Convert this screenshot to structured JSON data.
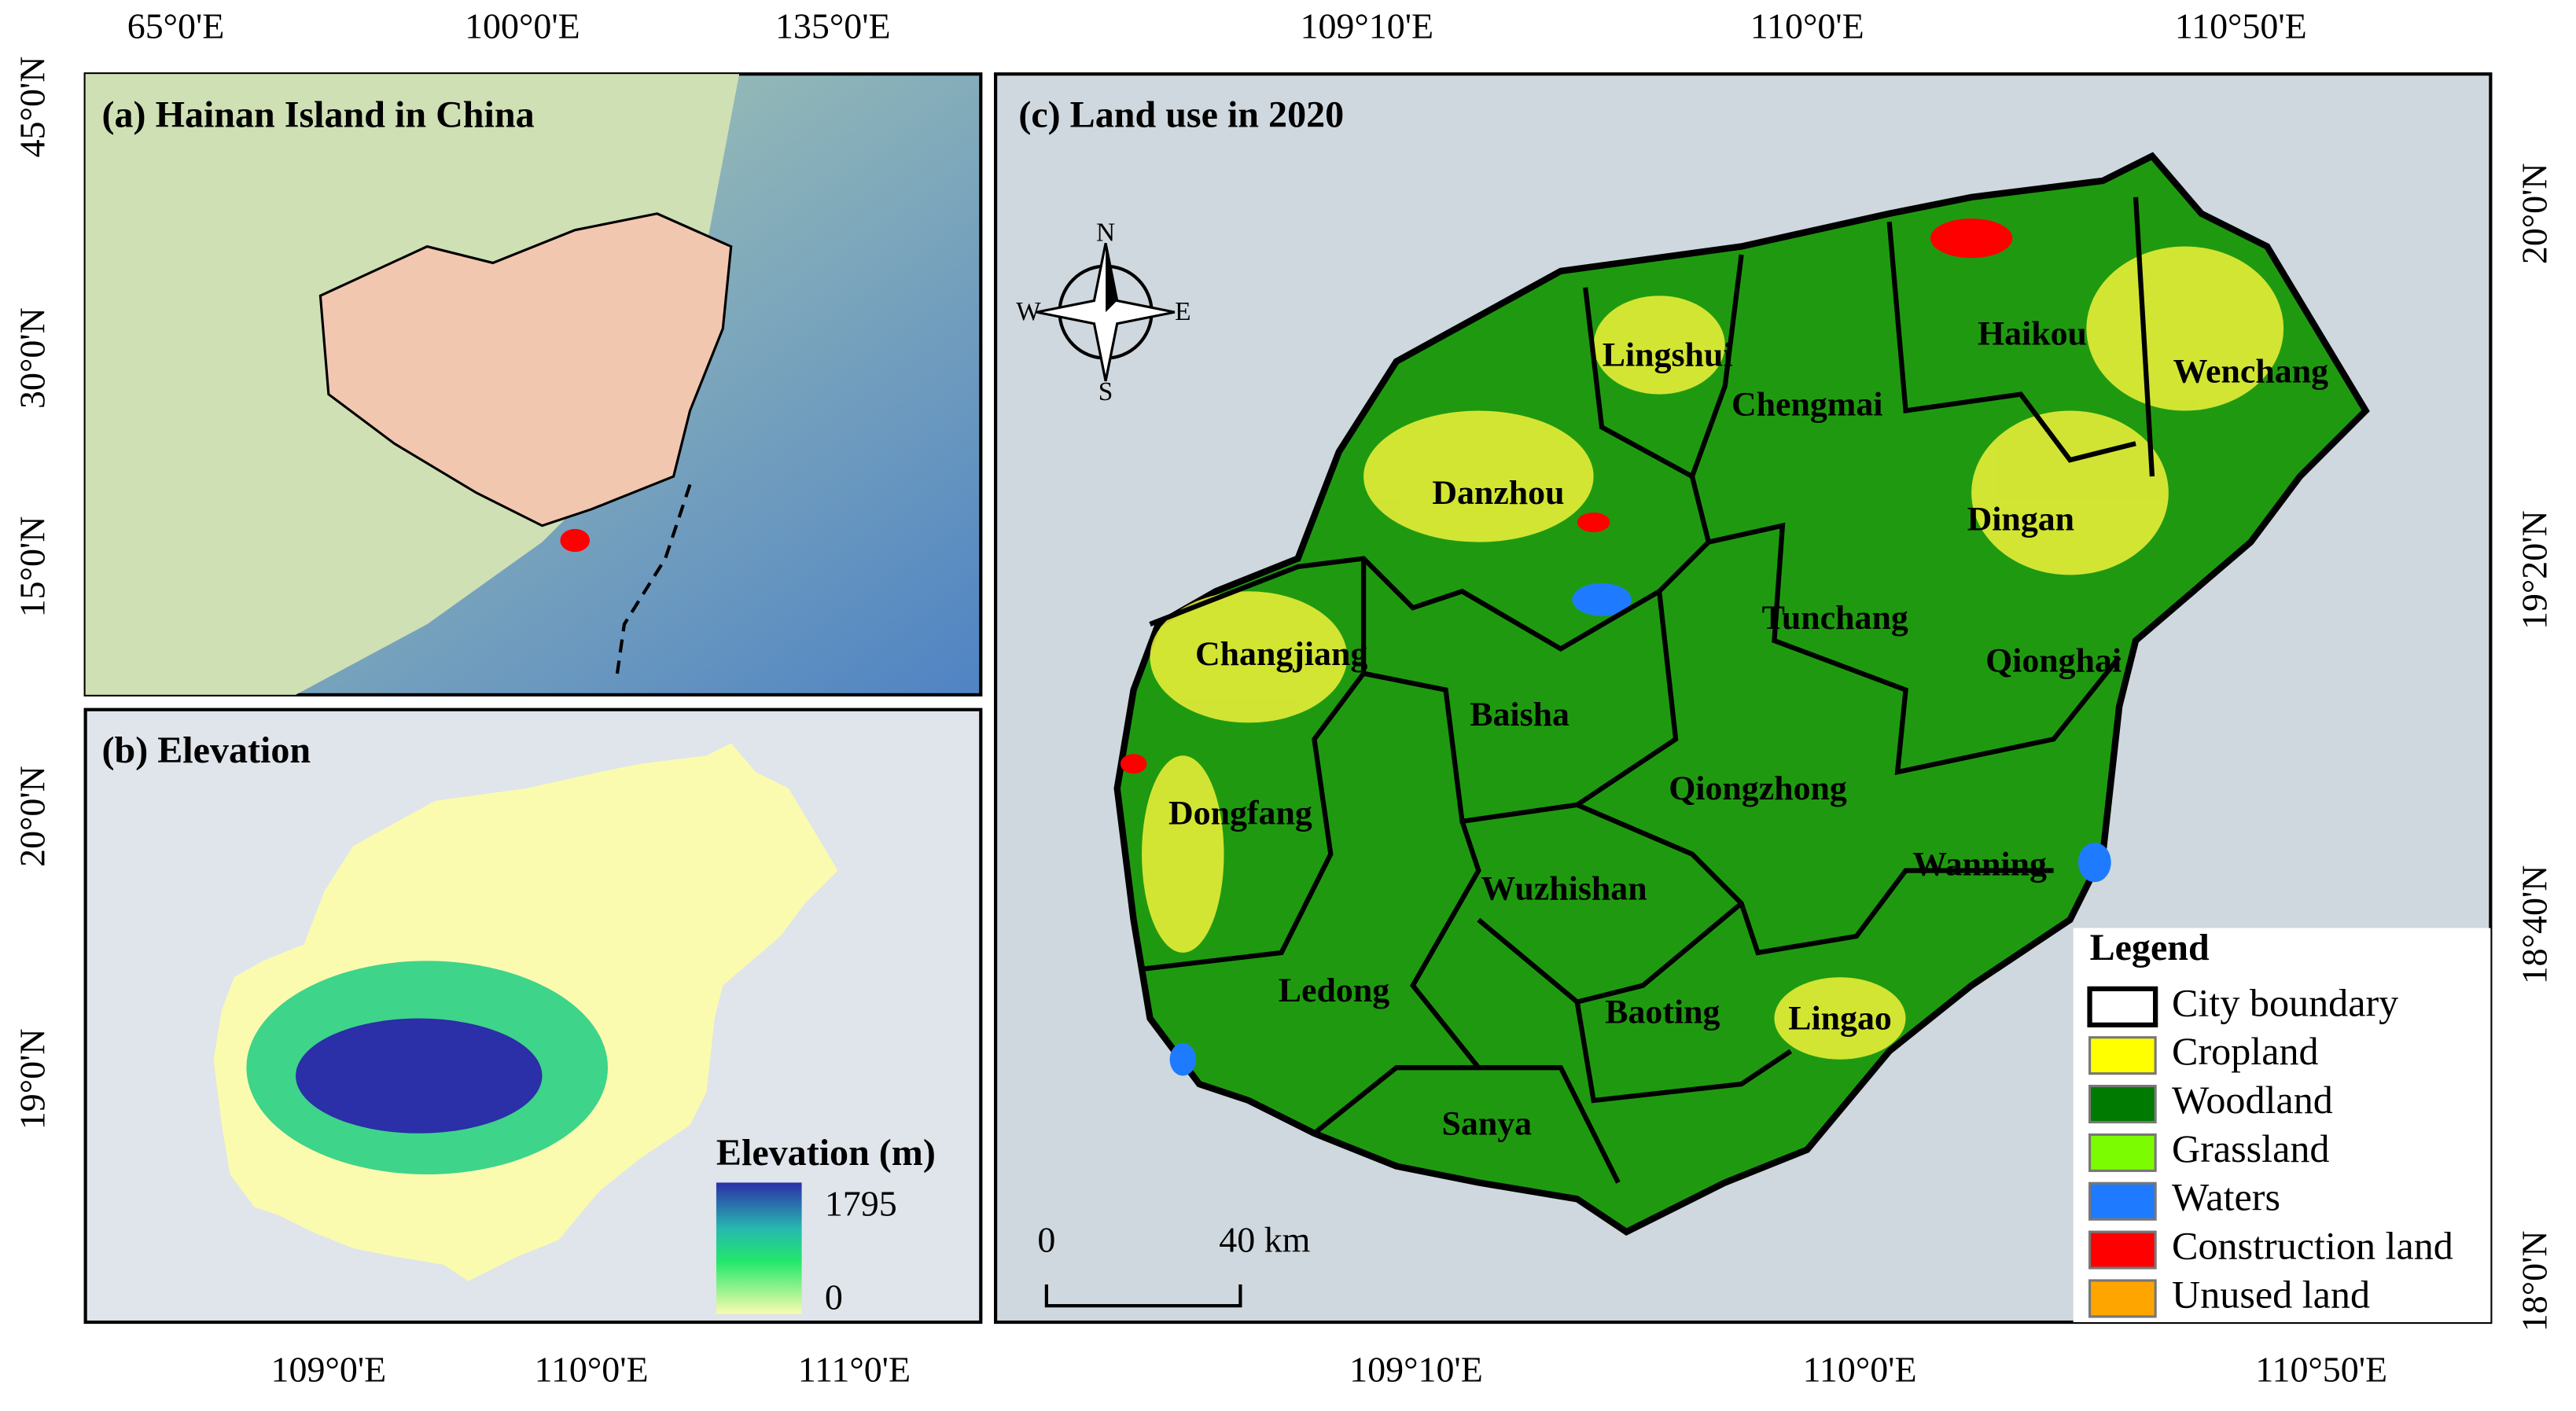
{
  "panels": {
    "a": {
      "title": "(a) Hainan Island in China",
      "top_labels": [
        "65°0'E",
        "100°0'E",
        "135°0'E"
      ],
      "left_labels": [
        "45°0'N",
        "30°0'N",
        "15°0'N"
      ]
    },
    "b": {
      "title": "(b) Elevation",
      "left_labels": [
        "20°0'N",
        "19°0'N"
      ],
      "bottom_labels": [
        "109°0'E",
        "110°0'E",
        "111°0'E"
      ],
      "colorbar": {
        "title": "Elevation (m)",
        "max": 1795,
        "min": 0
      }
    },
    "c": {
      "title": "(c) Land use in 2020",
      "top_labels": [
        "109°10'E",
        "110°0'E",
        "110°50'E"
      ],
      "bottom_labels": [
        "109°10'E",
        "110°0'E",
        "110°50'E"
      ],
      "right_labels": [
        "20°0'N",
        "19°20'N",
        "18°40'N",
        "18°0'N"
      ],
      "compass": {
        "n": "N",
        "s": "S",
        "w": "W",
        "e": "E"
      },
      "scale_bar": {
        "start": "0",
        "end": "40 km"
      },
      "cities": [
        "Lingshui",
        "Chengmai",
        "Haikou",
        "Wenchang",
        "Danzhou",
        "Dingan",
        "Tunchang",
        "Qionghai",
        "Changjiang",
        "Baisha",
        "Qiongzhong",
        "Dongfang",
        "Wanning",
        "Wuzhishan",
        "Ledong",
        "Baoting",
        "Lingao",
        "Sanya"
      ],
      "legend": {
        "title": "Legend",
        "items": [
          {
            "name": "City boundary",
            "color": "#ffffff"
          },
          {
            "name": "Cropland",
            "color": "#ffff00"
          },
          {
            "name": "Woodland",
            "color": "#007a00"
          },
          {
            "name": "Grassland",
            "color": "#7cfc00"
          },
          {
            "name": "Waters",
            "color": "#1e7bff"
          },
          {
            "name": "Construction land",
            "color": "#ff0000"
          },
          {
            "name": "Unused land",
            "color": "#ffa500"
          }
        ]
      }
    }
  }
}
